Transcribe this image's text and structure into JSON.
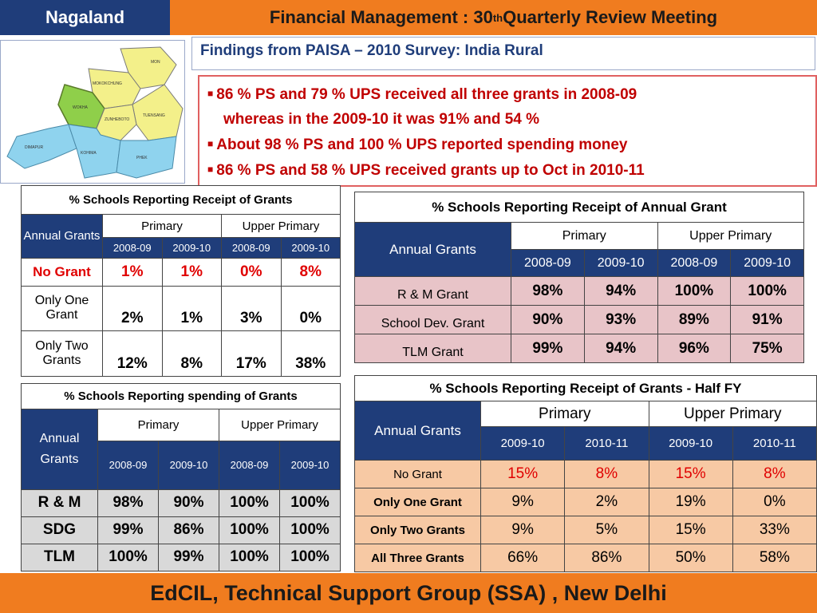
{
  "header": {
    "state": "Nagaland",
    "title_prefix": "Financial Management : 30",
    "title_sup": "th",
    "title_suffix": " Quarterly Review Meeting"
  },
  "subtitle": "Findings from PAISA – 2010  Survey: India Rural",
  "bullets": [
    {
      "line1": "86 % PS and 79 % UPS received all three grants in 2008-09",
      "line2": "whereas   in the  2009-10 it was 91% and 54 %"
    },
    {
      "line1": "About 98 % PS  and  100 % UPS reported spending money"
    },
    {
      "line1": "86 % PS and 58 % UPS received grants up to Oct in 2010-11"
    }
  ],
  "map": {
    "districts": [
      "MON",
      "MOKOKCHUNG",
      "WOKHA",
      "TUENSANG",
      "ZUNHEBOTO",
      "DIMAPUR",
      "KOHIMA",
      "PHEK"
    ]
  },
  "table_receipt": {
    "caption": "% Schools Reporting Receipt of Grants",
    "col_label": "Annual Grants",
    "groups": [
      "Primary",
      "Upper Primary"
    ],
    "years": [
      "2008-09",
      "2009-10",
      "2008-09",
      "2009-10"
    ],
    "rows": [
      {
        "label": "No Grant",
        "values": [
          "1%",
          "1%",
          "0%",
          "8%"
        ]
      },
      {
        "label": "Only One Grant",
        "values": [
          "2%",
          "1%",
          "3%",
          "0%"
        ]
      },
      {
        "label": "Only Two Grants",
        "values": [
          "12%",
          "8%",
          "17%",
          "38%"
        ]
      }
    ]
  },
  "table_spending": {
    "caption": "% Schools Reporting spending of Grants",
    "col_label": "Annual Grants",
    "groups": [
      "Primary",
      "Upper Primary"
    ],
    "years": [
      "2008-09",
      "2009-10",
      "2008-09",
      "2009-10"
    ],
    "rows": [
      {
        "label": "R & M",
        "values": [
          "98%",
          "90%",
          "100%",
          "100%"
        ]
      },
      {
        "label": "SDG",
        "values": [
          "99%",
          "86%",
          "100%",
          "100%"
        ]
      },
      {
        "label": "TLM",
        "values": [
          "100%",
          "99%",
          "100%",
          "100%"
        ]
      }
    ]
  },
  "table_annual": {
    "caption": "% Schools Reporting Receipt of  Annual Grant",
    "col_label": "Annual Grants",
    "groups": [
      "Primary",
      "Upper Primary"
    ],
    "years": [
      "2008-09",
      "2009-10",
      "2008-09",
      "2009-10"
    ],
    "rows": [
      {
        "label": "R & M Grant",
        "values": [
          "98%",
          "94%",
          "100%",
          "100%"
        ]
      },
      {
        "label": "School Dev. Grant",
        "values": [
          "90%",
          "93%",
          "89%",
          "91%"
        ]
      },
      {
        "label": "TLM Grant",
        "values": [
          "99%",
          "94%",
          "96%",
          "75%"
        ]
      }
    ]
  },
  "table_halffy": {
    "caption": "% Schools Reporting Receipt of Grants - Half FY",
    "col_label": "Annual Grants",
    "groups": [
      "Primary",
      "Upper Primary"
    ],
    "years": [
      "2009-10",
      "2010-11",
      "2009-10",
      "2010-11"
    ],
    "rows": [
      {
        "label": "No Grant",
        "values": [
          "15%",
          "8%",
          "15%",
          "8%"
        ]
      },
      {
        "label": "Only One Grant",
        "values": [
          "9%",
          "2%",
          "19%",
          "0%"
        ]
      },
      {
        "label": "Only Two Grants",
        "values": [
          "9%",
          "5%",
          "15%",
          "33%"
        ]
      },
      {
        "label": "All Three Grants",
        "values": [
          "66%",
          "86%",
          "50%",
          "58%"
        ]
      }
    ]
  },
  "footer": "EdCIL, Technical Support Group (SSA) , New Delhi",
  "colors": {
    "navy": "#1f3d7a",
    "orange": "#f07c1f",
    "red": "#c00000",
    "pink": "#e8c4c8",
    "peach": "#f7c9a4"
  }
}
